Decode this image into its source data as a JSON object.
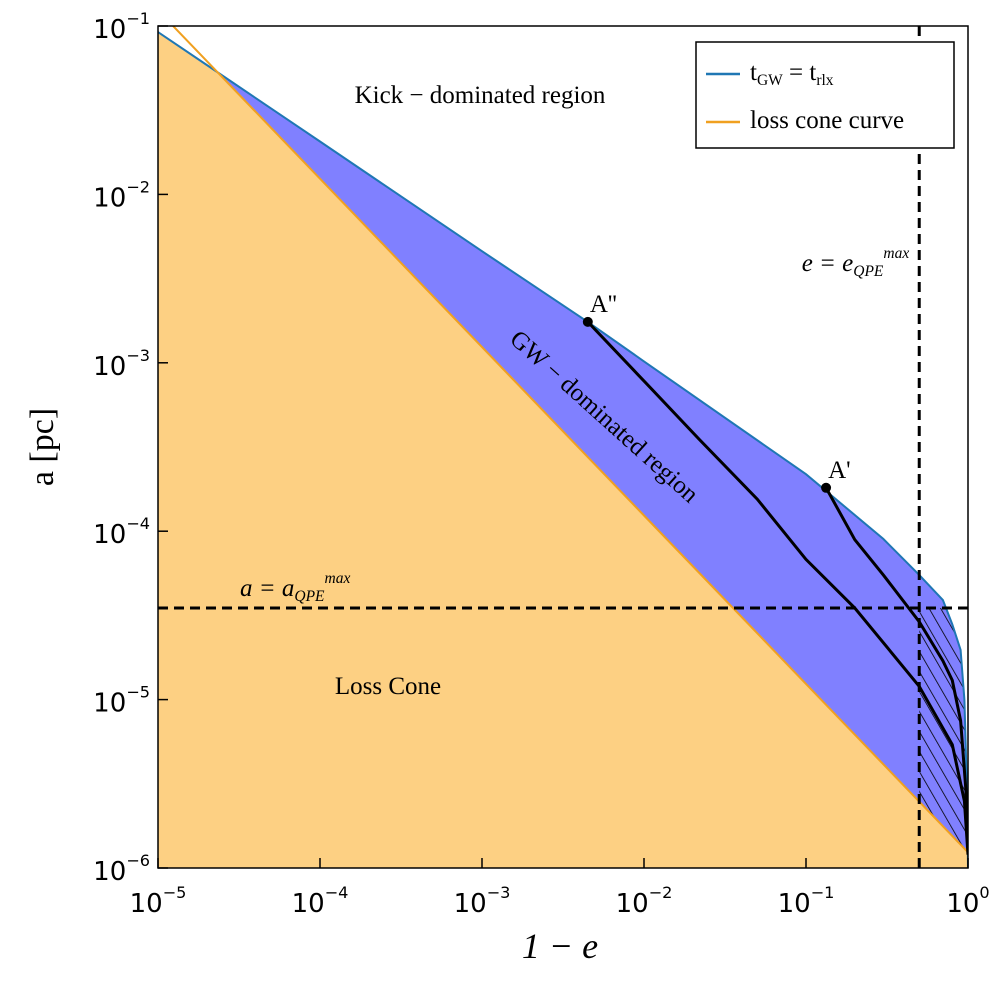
{
  "chart_data": {
    "type": "line",
    "x_label": "1 − e",
    "y_label": "a [pc]",
    "log_x": true,
    "log_y": true,
    "xlim": [
      1e-05,
      1
    ],
    "ylim": [
      1e-06,
      0.1
    ],
    "xticks": [
      {
        "value": 1e-05,
        "label": "10^−5"
      },
      {
        "value": 0.0001,
        "label": "10^−4"
      },
      {
        "value": 0.001,
        "label": "10^−3"
      },
      {
        "value": 0.01,
        "label": "10^−2"
      },
      {
        "value": 0.1,
        "label": "10^−1"
      },
      {
        "value": 1,
        "label": "10^0"
      }
    ],
    "yticks": [
      {
        "value": 1e-06,
        "label": "10^−6"
      },
      {
        "value": 1e-05,
        "label": "10^−5"
      },
      {
        "value": 0.0001,
        "label": "10^−4"
      },
      {
        "value": 0.001,
        "label": "10^−3"
      },
      {
        "value": 0.01,
        "label": "10^−2"
      },
      {
        "value": 0.1,
        "label": "10^−1"
      }
    ],
    "legend": "upper right",
    "series": [
      {
        "name": "t_GW = t_rlx",
        "color": "#1f77b4",
        "fill": "#8080ff",
        "x": [
          1e-05,
          2e-05,
          0.0001,
          0.001,
          0.0045,
          0.01,
          0.1,
          0.3,
          0.5,
          0.7,
          0.8,
          0.9,
          0.95,
          0.99,
          1
        ],
        "values": [
          0.092,
          0.0587,
          0.0206,
          0.0046,
          0.00175,
          0.00102,
          0.000218,
          9e-05,
          5.5e-05,
          3.9e-05,
          2.8e-05,
          1.97e-05,
          1e-05,
          2.5e-06,
          1e-06
        ]
      },
      {
        "name": "loss cone curve",
        "color": "#f0a020",
        "fill": "#fdd083",
        "x": [
          1.24e-05,
          0.0001,
          0.001,
          0.01,
          0.1,
          1
        ],
        "values": [
          0.1,
          0.0124,
          0.00124,
          0.000124,
          1.24e-05,
          1.24e-06
        ]
      }
    ],
    "tracks": [
      {
        "color": "#000000",
        "x": [
          0.0045,
          0.01,
          0.022,
          0.05,
          0.1,
          0.2,
          0.5,
          0.8,
          0.95,
          1
        ],
        "values": [
          0.00175,
          0.00078,
          0.00035,
          0.000155,
          6.8e-05,
          3.5e-05,
          1.2e-05,
          5.4e-06,
          2.5e-06,
          1.2e-06
        ]
      },
      {
        "color": "#000000",
        "x": [
          0.133,
          0.2,
          0.3,
          0.5,
          0.7,
          0.8,
          0.9,
          0.97,
          1
        ],
        "values": [
          0.000181,
          8.9e-05,
          5.5e-05,
          2.9e-05,
          1.7e-05,
          1.3e-05,
          7.5e-06,
          2.9e-06,
          1.3e-06
        ]
      }
    ],
    "points": [
      {
        "label": "A''",
        "x": 0.0045,
        "y": 0.00175
      },
      {
        "label": "A'",
        "x": 0.133,
        "y": 0.000181
      }
    ],
    "hlines": [
      {
        "value": 3.5e-05,
        "label": "a = a_QPE^max"
      }
    ],
    "vlines": [
      {
        "value": 0.5,
        "label": "e = e_QPE^max"
      }
    ],
    "annotations": [
      "Kick − dominated region",
      "GW − dominated region",
      "Loss Cone"
    ]
  }
}
